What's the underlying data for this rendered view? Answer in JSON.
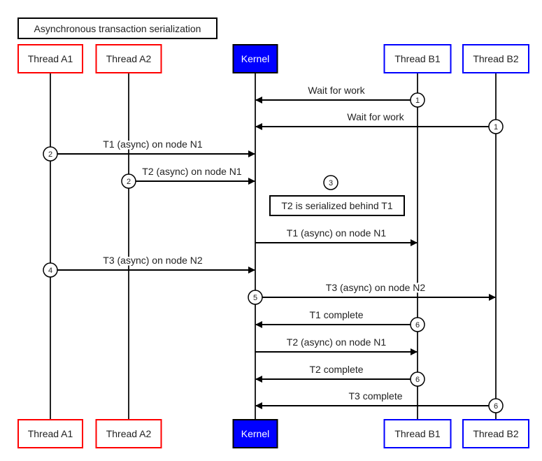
{
  "title": "Asynchronous transaction serialization",
  "participants": [
    {
      "id": "A1",
      "label": "Thread A1",
      "border": "#ff0000",
      "fill": "#ffffff",
      "text": "#222222"
    },
    {
      "id": "A2",
      "label": "Thread A2",
      "border": "#ff0000",
      "fill": "#ffffff",
      "text": "#222222"
    },
    {
      "id": "K",
      "label": "Kernel",
      "border": "#000000",
      "fill": "#0000ff",
      "text": "#ffffff"
    },
    {
      "id": "B1",
      "label": "Thread B1",
      "border": "#0000ff",
      "fill": "#ffffff",
      "text": "#222222"
    },
    {
      "id": "B2",
      "label": "Thread B2",
      "border": "#0000ff",
      "fill": "#ffffff",
      "text": "#222222"
    }
  ],
  "messages": [
    {
      "from": "B1",
      "to": "K",
      "label": "Wait for work",
      "step": "1",
      "step_at": "B1"
    },
    {
      "from": "B2",
      "to": "K",
      "label": "Wait for work",
      "step": "1",
      "step_at": "B2"
    },
    {
      "from": "A1",
      "to": "K",
      "label": "T1 (async) on node N1",
      "step": "2",
      "step_at": "A1"
    },
    {
      "from": "A2",
      "to": "K",
      "label": "T2 (async) on node N1",
      "step": "2",
      "step_at": "A2"
    },
    {
      "note": "T2 is serialized behind T1",
      "step": "3"
    },
    {
      "from": "K",
      "to": "B1",
      "label": "T1 (async) on node N1"
    },
    {
      "from": "A1",
      "to": "K",
      "label": "T3 (async) on node N2",
      "step": "4",
      "step_at": "A1"
    },
    {
      "from": "K",
      "to": "B2",
      "label": "T3 (async) on node N2",
      "step": "5",
      "step_at": "K"
    },
    {
      "from": "B1",
      "to": "K",
      "label": "T1 complete",
      "step": "6",
      "step_at": "B1"
    },
    {
      "from": "K",
      "to": "B1",
      "label": "T2 (async) on node N1"
    },
    {
      "from": "B1",
      "to": "K",
      "label": "T2 complete",
      "step": "6",
      "step_at": "B1"
    },
    {
      "from": "B2",
      "to": "K",
      "label": "T3 complete",
      "step": "6",
      "step_at": "B2"
    }
  ]
}
